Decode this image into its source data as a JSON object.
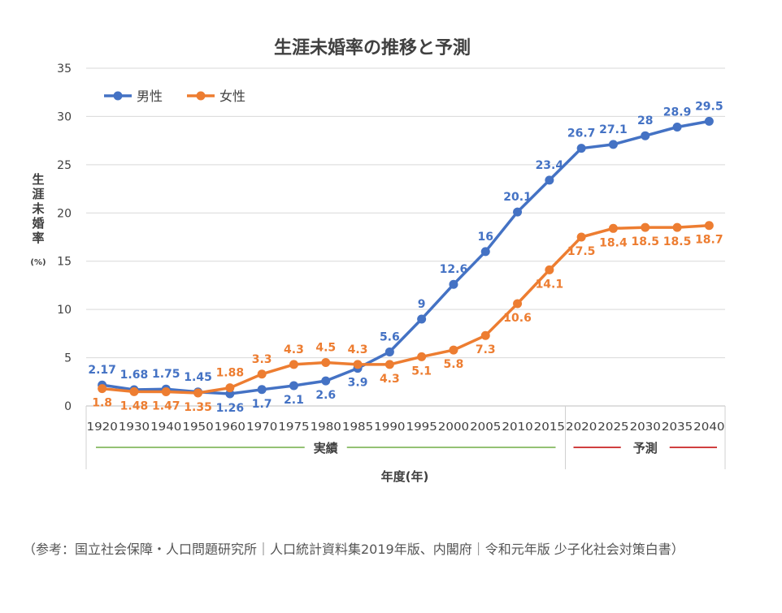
{
  "chart_data": {
    "type": "line",
    "title": "生涯未婚率の推移と予測",
    "ylabel_chars": [
      "生",
      "涯",
      "未",
      "婚",
      "率"
    ],
    "ylabel_unit": "(%)",
    "xlabel": "年度(年)",
    "ylim": [
      0,
      35
    ],
    "yticks": [
      "0",
      "5",
      "10",
      "15",
      "20",
      "25",
      "30",
      "35"
    ],
    "grid": true,
    "legend_position": "top-left",
    "categories": [
      "1920",
      "1930",
      "1940",
      "1950",
      "1960",
      "1970",
      "1975",
      "1980",
      "1985",
      "1990",
      "1995",
      "2000",
      "2005",
      "2010",
      "2015",
      "2020",
      "2025",
      "2030",
      "2035",
      "2040"
    ],
    "series": [
      {
        "name": "男性",
        "color": "#4472C4",
        "values": [
          2.17,
          1.68,
          1.75,
          1.45,
          1.26,
          1.7,
          2.1,
          2.6,
          3.9,
          5.6,
          9,
          12.6,
          16,
          20.1,
          23.4,
          26.7,
          27.1,
          28,
          28.9,
          29.5
        ],
        "labels": [
          "2.17",
          "1.68",
          "1.75",
          "1.45",
          "1.26",
          "1.7",
          "2.1",
          "2.6",
          "3.9",
          "5.6",
          "9",
          "12.6",
          "16",
          "20.1",
          "23.4",
          "26.7",
          "27.1",
          "28",
          "28.9",
          "29.5"
        ]
      },
      {
        "name": "女性",
        "color": "#ED7D31",
        "values": [
          1.8,
          1.48,
          1.47,
          1.35,
          1.88,
          3.3,
          4.3,
          4.5,
          4.3,
          4.3,
          5.1,
          5.8,
          7.3,
          10.6,
          14.1,
          17.5,
          18.4,
          18.5,
          18.5,
          18.7
        ],
        "labels": [
          "1.8",
          "1.48",
          "1.47",
          "1.35",
          "1.88",
          "3.3",
          "4.3",
          "4.5",
          "4.3",
          "4.3",
          "5.1",
          "5.8",
          "7.3",
          "10.6",
          "14.1",
          "17.5",
          "18.4",
          "18.5",
          "18.5",
          "18.7"
        ]
      }
    ],
    "groups": [
      {
        "label": "実績",
        "color": "#70AD47"
      },
      {
        "label": "予測",
        "color": "#C00000"
      }
    ]
  },
  "caption": "（参考：国立社会保障・人口問題研究所｜人口統計資料集2019年版、内閣府｜令和元年版 少子化社会対策白書）"
}
